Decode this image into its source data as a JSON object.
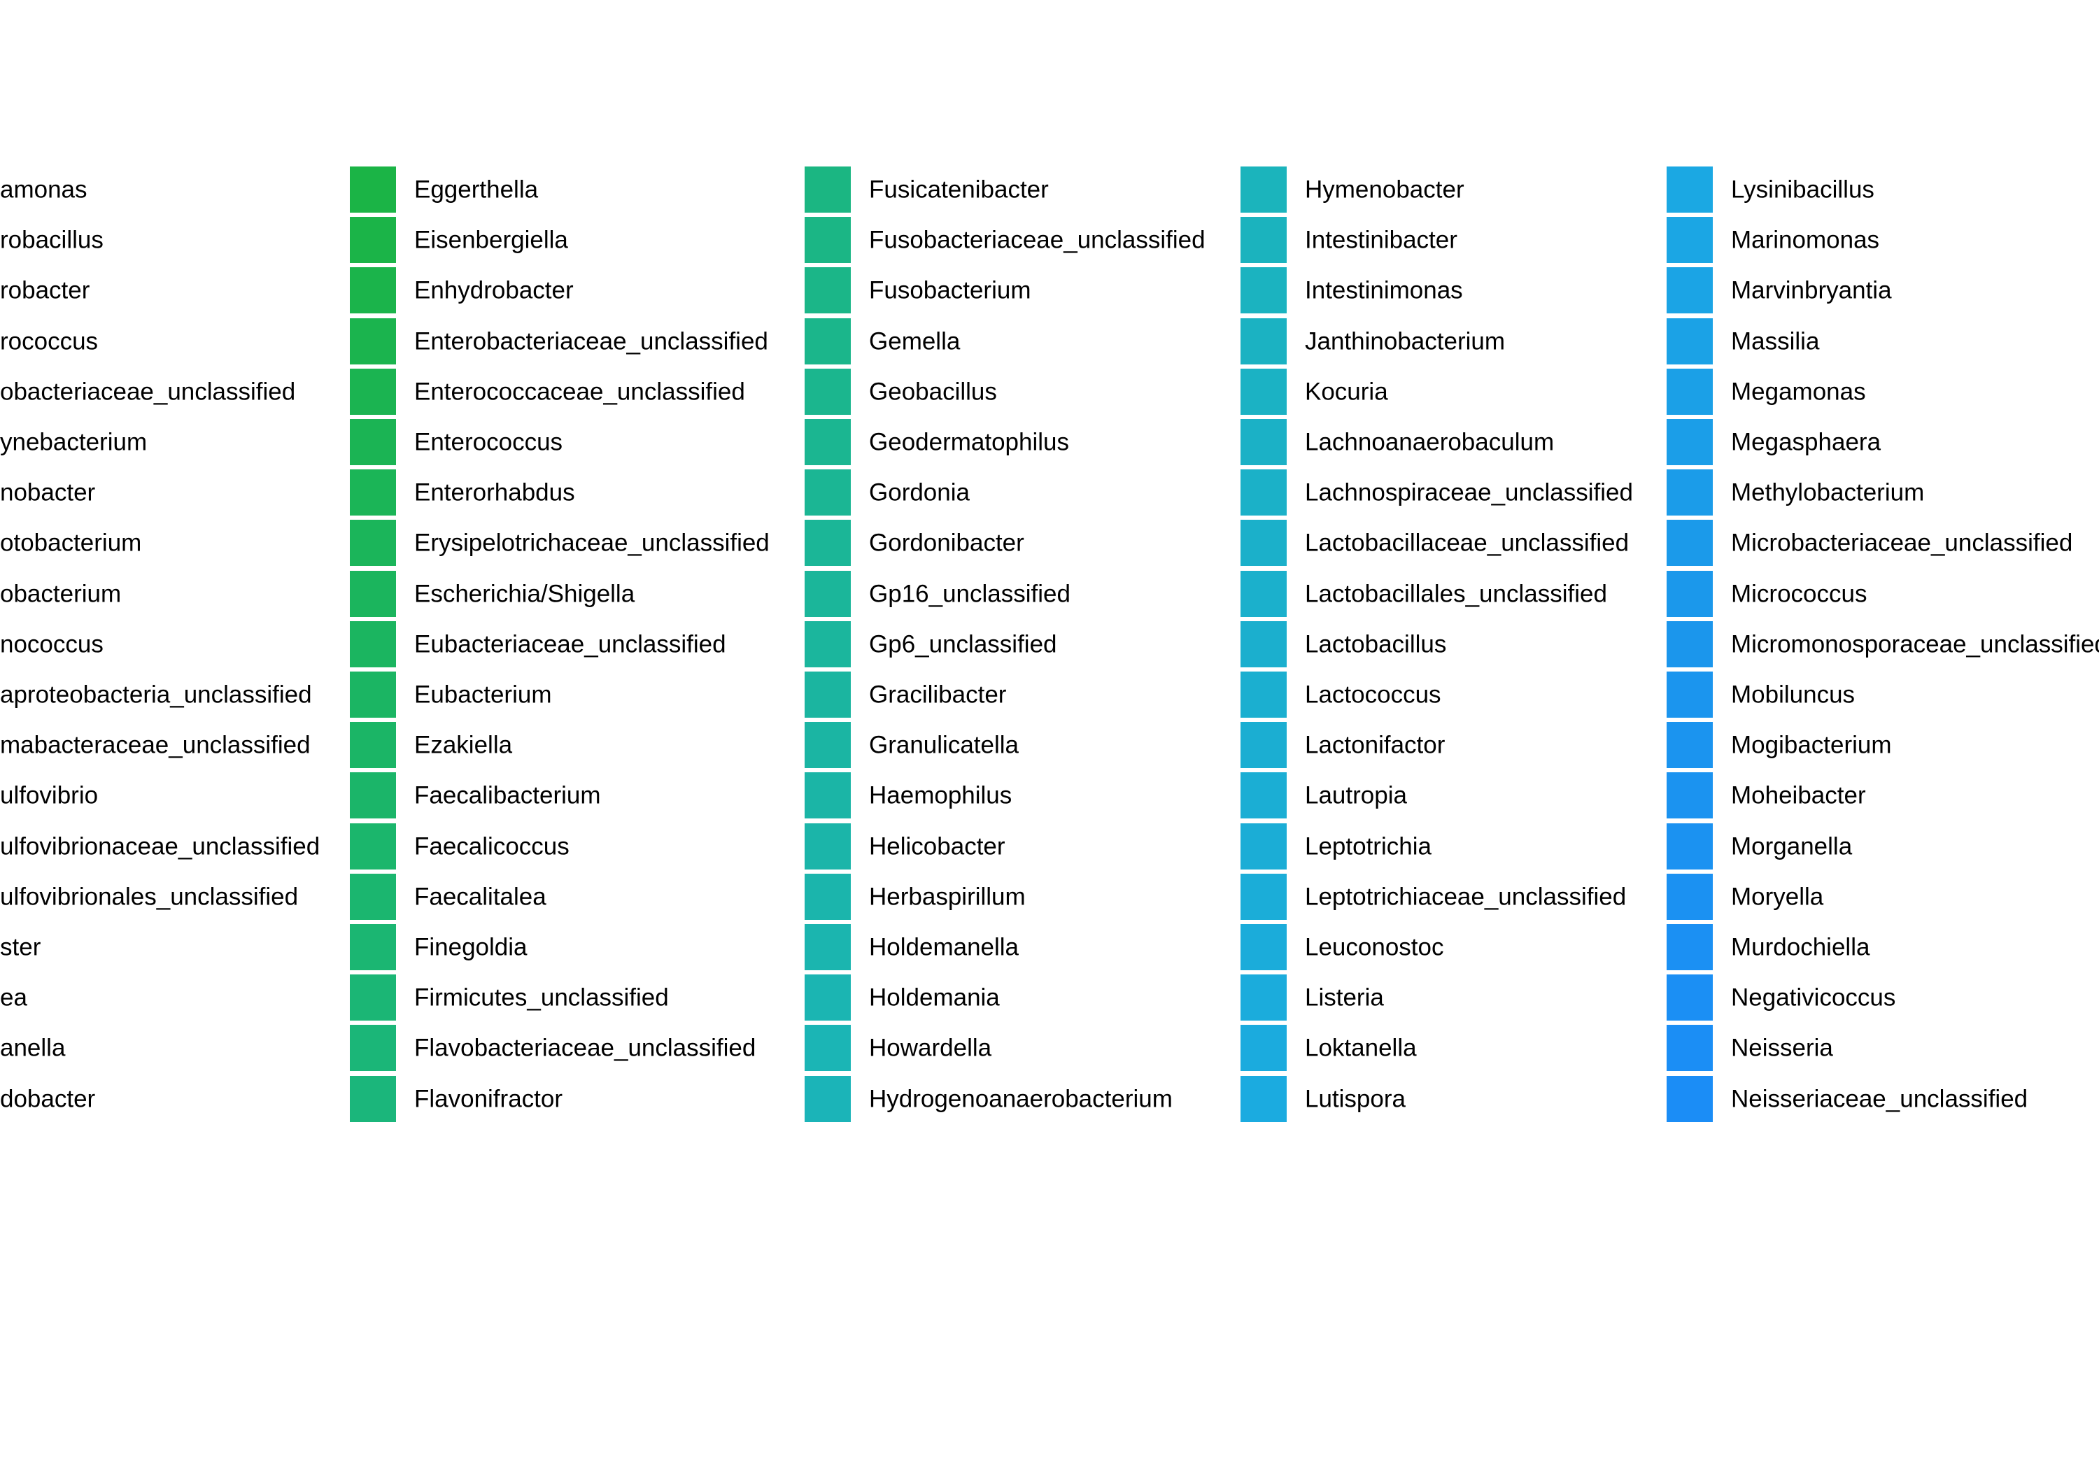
{
  "chart_data": {
    "type": "legend",
    "columns": [
      {
        "entries": [
          {
            "label": "amonas",
            "color": null
          },
          {
            "label": "robacillus",
            "color": null
          },
          {
            "label": "robacter",
            "color": null
          },
          {
            "label": "rococcus",
            "color": null
          },
          {
            "label": "obacteriaceae_unclassified",
            "color": null
          },
          {
            "label": "ynebacterium",
            "color": null
          },
          {
            "label": "nobacter",
            "color": null
          },
          {
            "label": "otobacterium",
            "color": null
          },
          {
            "label": "obacterium",
            "color": null
          },
          {
            "label": "nococcus",
            "color": null
          },
          {
            "label": "aproteobacteria_unclassified",
            "color": null
          },
          {
            "label": "mabacteraceae_unclassified",
            "color": null
          },
          {
            "label": "ulfovibrio",
            "color": null
          },
          {
            "label": "ulfovibrionaceae_unclassified",
            "color": null
          },
          {
            "label": "ulfovibrionales_unclassified",
            "color": null
          },
          {
            "label": "ster",
            "color": null
          },
          {
            "label": "ea",
            "color": null
          },
          {
            "label": "anella",
            "color": null
          },
          {
            "label": "dobacter",
            "color": null
          }
        ]
      },
      {
        "entries": [
          {
            "label": "Eggerthella",
            "color": "#1BB446"
          },
          {
            "label": "Eisenbergiella",
            "color": "#1BB448"
          },
          {
            "label": "Enhydrobacter",
            "color": "#1BB44B"
          },
          {
            "label": "Enterobacteriaceae_unclassified",
            "color": "#1BB44E"
          },
          {
            "label": "Enterococcaceae_unclassified",
            "color": "#1BB451"
          },
          {
            "label": "Enterococcus",
            "color": "#1BB454"
          },
          {
            "label": "Enterorhabdus",
            "color": "#1BB557"
          },
          {
            "label": "Erysipelotrichaceae_unclassified",
            "color": "#1BB55A"
          },
          {
            "label": "Escherichia/Shigella",
            "color": "#1BB55D"
          },
          {
            "label": "Eubacteriaceae_unclassified",
            "color": "#1BB560"
          },
          {
            "label": "Eubacterium",
            "color": "#1BB563"
          },
          {
            "label": "Ezakiella",
            "color": "#1BB566"
          },
          {
            "label": "Faecalibacterium",
            "color": "#1BB569"
          },
          {
            "label": "Faecalicoccus",
            "color": "#1BB66C"
          },
          {
            "label": "Faecalitalea",
            "color": "#1BB66F"
          },
          {
            "label": "Finegoldia",
            "color": "#1BB672"
          },
          {
            "label": "Firmicutes_unclassified",
            "color": "#1BB675"
          },
          {
            "label": "Flavobacteriaceae_unclassified",
            "color": "#1BB678"
          },
          {
            "label": "Flavonifractor",
            "color": "#1BB67B"
          }
        ]
      },
      {
        "entries": [
          {
            "label": "Fusicatenibacter",
            "color": "#1BB682"
          },
          {
            "label": "Fusobacteriaceae_unclassified",
            "color": "#1BB685"
          },
          {
            "label": "Fusobacterium",
            "color": "#1BB688"
          },
          {
            "label": "Gemella",
            "color": "#1BB68B"
          },
          {
            "label": "Geobacillus",
            "color": "#1BB68E"
          },
          {
            "label": "Geodermatophilus",
            "color": "#1BB691"
          },
          {
            "label": "Gordonia",
            "color": "#1BB694"
          },
          {
            "label": "Gordonibacter",
            "color": "#1BB697"
          },
          {
            "label": "Gp16_unclassified",
            "color": "#1BB69A"
          },
          {
            "label": "Gp6_unclassified",
            "color": "#1BB69D"
          },
          {
            "label": "Gracilibacter",
            "color": "#1BB5A0"
          },
          {
            "label": "Granulicatella",
            "color": "#1BB5A3"
          },
          {
            "label": "Haemophilus",
            "color": "#1BB5A6"
          },
          {
            "label": "Helicobacter",
            "color": "#1BB5A9"
          },
          {
            "label": "Herbaspirillum",
            "color": "#1BB5AC"
          },
          {
            "label": "Holdemanella",
            "color": "#1BB5AF"
          },
          {
            "label": "Holdemania",
            "color": "#1BB5B2"
          },
          {
            "label": "Howardella",
            "color": "#1BB5B5"
          },
          {
            "label": "Hydrogenoanaerobacterium",
            "color": "#1BB4B8"
          }
        ]
      },
      {
        "entries": [
          {
            "label": "Hymenobacter",
            "color": "#1BB4BC"
          },
          {
            "label": "Intestinibacter",
            "color": "#1BB3BE"
          },
          {
            "label": "Intestinimonas",
            "color": "#1BB3C0"
          },
          {
            "label": "Janthinobacterium",
            "color": "#1BB2C2"
          },
          {
            "label": "Kocuria",
            "color": "#1BB2C4"
          },
          {
            "label": "Lachnoanaerobaculum",
            "color": "#1BB1C6"
          },
          {
            "label": "Lachnospiraceae_unclassified",
            "color": "#1BB1C8"
          },
          {
            "label": "Lactobacillaceae_unclassified",
            "color": "#1BB0CA"
          },
          {
            "label": "Lactobacillales_unclassified",
            "color": "#1BB0CC"
          },
          {
            "label": "Lactobacillus",
            "color": "#1BAFCE"
          },
          {
            "label": "Lactococcus",
            "color": "#1BAFD0"
          },
          {
            "label": "Lactonifactor",
            "color": "#1BAED2"
          },
          {
            "label": "Lautropia",
            "color": "#1BAED4"
          },
          {
            "label": "Leptotrichia",
            "color": "#1BADD6"
          },
          {
            "label": "Leptotrichiaceae_unclassified",
            "color": "#1BADD8"
          },
          {
            "label": "Leuconostoc",
            "color": "#1BACDA"
          },
          {
            "label": "Listeria",
            "color": "#1BACDC"
          },
          {
            "label": "Loktanella",
            "color": "#1BABDE"
          },
          {
            "label": "Lutispora",
            "color": "#1BABE0"
          }
        ]
      },
      {
        "entries": [
          {
            "label": "Lysinibacillus",
            "color": "#1BA8E3"
          },
          {
            "label": "Marinomonas",
            "color": "#1BA6E4"
          },
          {
            "label": "Marvinbryantia",
            "color": "#1BA4E5"
          },
          {
            "label": "Massilia",
            "color": "#1BA2E6"
          },
          {
            "label": "Megamonas",
            "color": "#1BA0E7"
          },
          {
            "label": "Megasphaera",
            "color": "#1B9EE8"
          },
          {
            "label": "Methylobacterium",
            "color": "#1B9CE9"
          },
          {
            "label": "Microbacteriaceae_unclassified",
            "color": "#1B9AEA"
          },
          {
            "label": "Micrococcus",
            "color": "#1B98EB"
          },
          {
            "label": "Micromonosporaceae_unclassified",
            "color": "#1B96EC"
          },
          {
            "label": "Mobiluncus",
            "color": "#1B95EE"
          },
          {
            "label": "Mogibacterium",
            "color": "#1B94EF"
          },
          {
            "label": "Moheibacter",
            "color": "#1B93F0"
          },
          {
            "label": "Morganella",
            "color": "#1B92F1"
          },
          {
            "label": "Moryella",
            "color": "#1B91F2"
          },
          {
            "label": "Murdochiella",
            "color": "#1B90F3"
          },
          {
            "label": "Negativicoccus",
            "color": "#1B8FF4"
          },
          {
            "label": "Neisseria",
            "color": "#1B8EF5"
          },
          {
            "label": "Neisseriaceae_unclassified",
            "color": "#1B8DF6"
          }
        ]
      }
    ]
  }
}
